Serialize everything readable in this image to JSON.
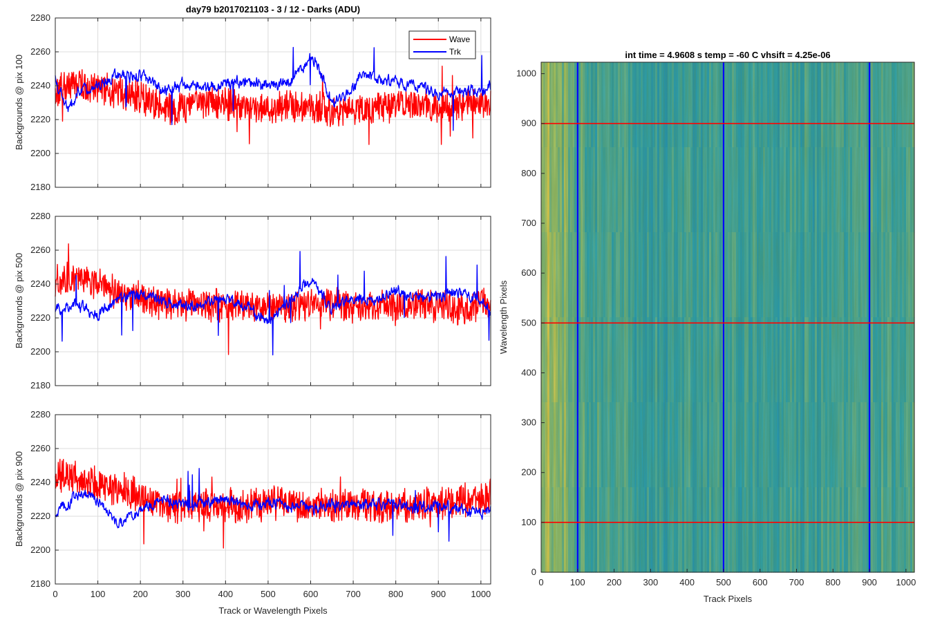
{
  "figure": {
    "title": "day79 b2017021103 - 3 / 12 - Darks (ADU)",
    "image_title": "int time = 4.9608 s    temp = -60 C    vhsift = 4.25e-06"
  },
  "colors": {
    "wave": "#ff0000",
    "trk": "#0000ff",
    "grid": "#dcdcdc",
    "axis": "#262626"
  },
  "legend": {
    "items": [
      "Wave",
      "Trk"
    ],
    "placement": "top-right"
  },
  "chart_data": [
    {
      "type": "line",
      "ylabel": "Backgrounds @ pix 100",
      "xlabel": "",
      "xlim": [
        0,
        1023
      ],
      "ylim": [
        2180,
        2280
      ],
      "xticks": [
        0,
        100,
        200,
        300,
        400,
        500,
        600,
        700,
        800,
        900,
        1000
      ],
      "yticks": [
        2180,
        2200,
        2220,
        2240,
        2260,
        2280
      ],
      "series": [
        {
          "name": "Wave",
          "x": [
            0,
            50,
            100,
            150,
            200,
            250,
            275,
            300,
            350,
            400,
            450,
            500,
            550,
            600,
            650,
            700,
            750,
            800,
            850,
            900,
            950,
            1000,
            1023
          ],
          "values": [
            2237,
            2243,
            2238,
            2236,
            2233,
            2228,
            2224,
            2228,
            2230,
            2229,
            2228,
            2227,
            2228,
            2227,
            2226,
            2224,
            2227,
            2229,
            2228,
            2228,
            2229,
            2230,
            2231
          ]
        },
        {
          "name": "Trk",
          "x": [
            0,
            30,
            50,
            100,
            150,
            200,
            250,
            300,
            350,
            400,
            450,
            500,
            550,
            580,
            600,
            620,
            650,
            700,
            720,
            750,
            800,
            850,
            900,
            950,
            1000,
            1023
          ],
          "values": [
            2245,
            2225,
            2235,
            2240,
            2247,
            2246,
            2238,
            2240,
            2238,
            2241,
            2242,
            2240,
            2242,
            2250,
            2258,
            2250,
            2230,
            2238,
            2248,
            2245,
            2242,
            2241,
            2236,
            2237,
            2236,
            2240
          ]
        }
      ]
    },
    {
      "type": "line",
      "ylabel": "Backgrounds @ pix 500",
      "xlabel": "",
      "xlim": [
        0,
        1023
      ],
      "ylim": [
        2180,
        2280
      ],
      "xticks": [
        0,
        100,
        200,
        300,
        400,
        500,
        600,
        700,
        800,
        900,
        1000
      ],
      "yticks": [
        2180,
        2200,
        2220,
        2240,
        2260,
        2280
      ],
      "series": [
        {
          "name": "Wave",
          "x": [
            0,
            50,
            100,
            150,
            200,
            250,
            300,
            350,
            400,
            450,
            500,
            550,
            600,
            650,
            700,
            750,
            800,
            850,
            900,
            950,
            1000,
            1023
          ],
          "values": [
            2243,
            2243,
            2240,
            2234,
            2232,
            2229,
            2227,
            2228,
            2227,
            2228,
            2226,
            2227,
            2228,
            2228,
            2226,
            2227,
            2226,
            2228,
            2227,
            2225,
            2228,
            2228
          ]
        },
        {
          "name": "Trk",
          "x": [
            0,
            50,
            100,
            150,
            200,
            250,
            300,
            350,
            400,
            450,
            500,
            550,
            580,
            600,
            620,
            650,
            700,
            750,
            800,
            850,
            900,
            950,
            1000,
            1023
          ],
          "values": [
            2226,
            2228,
            2222,
            2232,
            2234,
            2230,
            2228,
            2229,
            2232,
            2226,
            2218,
            2230,
            2238,
            2242,
            2235,
            2226,
            2232,
            2230,
            2236,
            2232,
            2232,
            2235,
            2230,
            2224
          ]
        }
      ]
    },
    {
      "type": "line",
      "ylabel": "Backgrounds @ pix 900",
      "xlabel": "Track or Wavelength Pixels",
      "xlim": [
        0,
        1023
      ],
      "ylim": [
        2180,
        2280
      ],
      "xticks": [
        0,
        100,
        200,
        300,
        400,
        500,
        600,
        700,
        800,
        900,
        1000
      ],
      "yticks": [
        2180,
        2200,
        2220,
        2240,
        2260,
        2280
      ],
      "series": [
        {
          "name": "Wave",
          "x": [
            0,
            50,
            100,
            150,
            200,
            250,
            300,
            350,
            400,
            450,
            500,
            550,
            600,
            650,
            700,
            750,
            800,
            850,
            900,
            950,
            1000,
            1023
          ],
          "values": [
            2244,
            2243,
            2238,
            2237,
            2232,
            2226,
            2226,
            2227,
            2227,
            2226,
            2227,
            2228,
            2226,
            2226,
            2228,
            2226,
            2226,
            2227,
            2228,
            2229,
            2230,
            2233
          ]
        },
        {
          "name": "Trk",
          "x": [
            0,
            30,
            60,
            100,
            150,
            200,
            250,
            300,
            350,
            400,
            450,
            500,
            550,
            600,
            650,
            700,
            750,
            800,
            850,
            900,
            950,
            1000,
            1023
          ],
          "values": [
            2221,
            2228,
            2233,
            2230,
            2215,
            2224,
            2230,
            2226,
            2228,
            2230,
            2226,
            2228,
            2226,
            2225,
            2226,
            2228,
            2226,
            2228,
            2225,
            2226,
            2225,
            2222,
            2224
          ]
        }
      ]
    },
    {
      "type": "heatmap",
      "title": "int time = 4.9608 s    temp = -60 C    vhsift = 4.25e-06",
      "xlabel": "Track Pixels",
      "ylabel": "Wavelength Pixels",
      "xlim": [
        0,
        1023
      ],
      "ylim": [
        0,
        1023
      ],
      "xticks": [
        0,
        100,
        200,
        300,
        400,
        500,
        600,
        700,
        800,
        900,
        1000
      ],
      "yticks": [
        0,
        100,
        200,
        300,
        400,
        500,
        600,
        700,
        800,
        900,
        1000
      ],
      "colormap": [
        "#e8c94a",
        "#a9c262",
        "#5fae92",
        "#2a9fb0",
        "#1f8fb5"
      ],
      "vertical_markers": [
        100,
        500,
        900
      ],
      "vertical_marker_color": "#0000ff",
      "horizontal_markers": [
        100,
        500,
        900
      ],
      "horizontal_marker_color": "#ff0000",
      "column_profile": {
        "x": [
          0,
          20,
          60,
          100,
          150,
          200,
          300,
          400,
          500,
          600,
          700,
          800,
          900,
          1000,
          1023
        ],
        "level": [
          0.2,
          0.2,
          0.35,
          0.55,
          0.65,
          0.7,
          0.72,
          0.72,
          0.7,
          0.75,
          0.72,
          0.7,
          0.68,
          0.6,
          0.5
        ]
      }
    }
  ]
}
